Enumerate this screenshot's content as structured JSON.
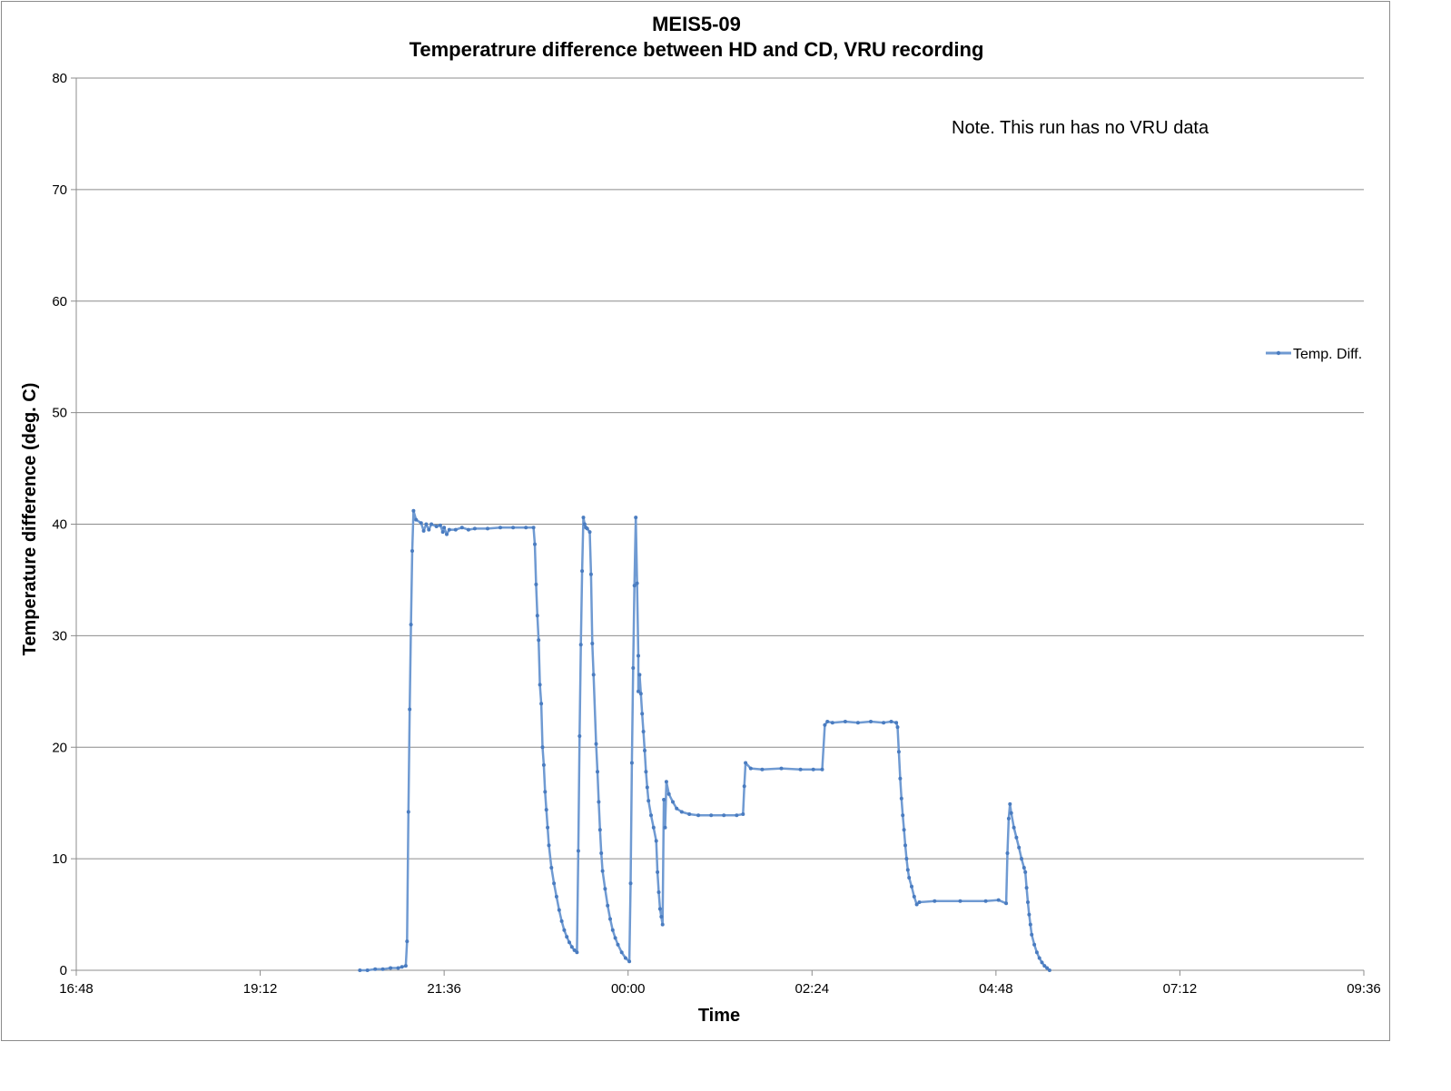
{
  "chart_data": {
    "type": "line",
    "title": "MEIS5-09",
    "subtitle": "Temperatrure difference between HD and CD, VRU recording",
    "xlabel": "Time",
    "ylabel": "Temperature difference (deg. C)",
    "xlim": [
      "16:48",
      "09:36"
    ],
    "ylim": [
      0,
      80
    ],
    "x_ticks": [
      "16:48",
      "19:12",
      "21:36",
      "00:00",
      "02:24",
      "04:48",
      "07:12",
      "09:36"
    ],
    "y_ticks": [
      "0",
      "10",
      "20",
      "30",
      "40",
      "50",
      "60",
      "70",
      "80"
    ],
    "grid": "horizontal",
    "legend_position": "right",
    "annotation": "Note. This run has no VRU data",
    "series_color": "#6f9ad2",
    "series": [
      {
        "name": "Temp. Diff.",
        "points": [
          [
            "20:30",
            0.0
          ],
          [
            "20:36",
            0.0
          ],
          [
            "20:42",
            0.1
          ],
          [
            "20:48",
            0.1
          ],
          [
            "20:54",
            0.2
          ],
          [
            "21:00",
            0.2
          ],
          [
            "21:03",
            0.3
          ],
          [
            "21:06",
            0.4
          ],
          [
            "21:07",
            2.6
          ],
          [
            "21:08",
            14.2
          ],
          [
            "21:09",
            23.4
          ],
          [
            "21:10",
            31.0
          ],
          [
            "21:11",
            37.6
          ],
          [
            "21:12",
            41.2
          ],
          [
            "21:14",
            40.4
          ],
          [
            "21:18",
            40.1
          ],
          [
            "21:20",
            39.4
          ],
          [
            "21:22",
            40.0
          ],
          [
            "21:24",
            39.5
          ],
          [
            "21:26",
            40.0
          ],
          [
            "21:30",
            39.8
          ],
          [
            "21:33",
            39.9
          ],
          [
            "21:35",
            39.3
          ],
          [
            "21:36",
            39.7
          ],
          [
            "21:38",
            39.1
          ],
          [
            "21:40",
            39.5
          ],
          [
            "21:45",
            39.5
          ],
          [
            "21:50",
            39.7
          ],
          [
            "21:55",
            39.5
          ],
          [
            "22:00",
            39.6
          ],
          [
            "22:10",
            39.6
          ],
          [
            "22:20",
            39.7
          ],
          [
            "22:30",
            39.7
          ],
          [
            "22:40",
            39.7
          ],
          [
            "22:46",
            39.7
          ],
          [
            "22:47",
            38.2
          ],
          [
            "22:48",
            34.6
          ],
          [
            "22:49",
            31.8
          ],
          [
            "22:50",
            29.6
          ],
          [
            "22:51",
            25.6
          ],
          [
            "22:52",
            23.9
          ],
          [
            "22:53",
            20.0
          ],
          [
            "22:54",
            18.4
          ],
          [
            "22:55",
            16.0
          ],
          [
            "22:56",
            14.4
          ],
          [
            "22:57",
            12.8
          ],
          [
            "22:58",
            11.2
          ],
          [
            "23:00",
            9.2
          ],
          [
            "23:02",
            7.8
          ],
          [
            "23:04",
            6.6
          ],
          [
            "23:06",
            5.4
          ],
          [
            "23:08",
            4.4
          ],
          [
            "23:10",
            3.6
          ],
          [
            "23:12",
            3.0
          ],
          [
            "23:14",
            2.5
          ],
          [
            "23:16",
            2.1
          ],
          [
            "23:18",
            1.8
          ],
          [
            "23:20",
            1.6
          ],
          [
            "23:21",
            10.7
          ],
          [
            "23:22",
            21.0
          ],
          [
            "23:23",
            29.2
          ],
          [
            "23:24",
            35.8
          ],
          [
            "23:25",
            40.6
          ],
          [
            "23:26",
            40.0
          ],
          [
            "23:27",
            39.7
          ],
          [
            "23:28",
            39.6
          ],
          [
            "23:30",
            39.3
          ],
          [
            "23:31",
            35.5
          ],
          [
            "23:32",
            29.3
          ],
          [
            "23:33",
            26.5
          ],
          [
            "23:35",
            20.3
          ],
          [
            "23:36",
            17.8
          ],
          [
            "23:37",
            15.1
          ],
          [
            "23:38",
            12.6
          ],
          [
            "23:39",
            10.5
          ],
          [
            "23:40",
            8.9
          ],
          [
            "23:42",
            7.3
          ],
          [
            "23:44",
            5.8
          ],
          [
            "23:46",
            4.6
          ],
          [
            "23:48",
            3.6
          ],
          [
            "23:50",
            2.9
          ],
          [
            "23:52",
            2.3
          ],
          [
            "23:55",
            1.6
          ],
          [
            "23:58",
            1.1
          ],
          [
            "24:01",
            0.8
          ],
          [
            "24:02",
            7.8
          ],
          [
            "24:03",
            18.6
          ],
          [
            "24:04",
            27.1
          ],
          [
            "24:05",
            34.5
          ],
          [
            "24:06",
            40.6
          ],
          [
            "24:07",
            34.7
          ],
          [
            "24:08",
            28.2
          ],
          [
            "24:08",
            25.0
          ],
          [
            "24:09",
            26.5
          ],
          [
            "24:10",
            24.8
          ],
          [
            "24:11",
            23.0
          ],
          [
            "24:12",
            21.4
          ],
          [
            "24:13",
            19.7
          ],
          [
            "24:14",
            17.8
          ],
          [
            "24:15",
            16.4
          ],
          [
            "24:16",
            15.2
          ],
          [
            "24:18",
            13.9
          ],
          [
            "24:20",
            12.8
          ],
          [
            "24:22",
            11.6
          ],
          [
            "24:23",
            8.8
          ],
          [
            "24:24",
            7.0
          ],
          [
            "24:25",
            5.5
          ],
          [
            "24:26",
            4.8
          ],
          [
            "24:27",
            4.1
          ],
          [
            "24:28",
            15.3
          ],
          [
            "24:29",
            12.8
          ],
          [
            "24:30",
            16.9
          ],
          [
            "24:32",
            15.8
          ],
          [
            "24:35",
            15.1
          ],
          [
            "24:38",
            14.5
          ],
          [
            "24:42",
            14.2
          ],
          [
            "24:48",
            14.0
          ],
          [
            "24:55",
            13.9
          ],
          [
            "25:05",
            13.9
          ],
          [
            "25:15",
            13.9
          ],
          [
            "25:25",
            13.9
          ],
          [
            "25:30",
            14.0
          ],
          [
            "25:31",
            16.5
          ],
          [
            "25:32",
            18.6
          ],
          [
            "25:36",
            18.1
          ],
          [
            "25:45",
            18.0
          ],
          [
            "26:00",
            18.1
          ],
          [
            "26:15",
            18.0
          ],
          [
            "26:25",
            18.0
          ],
          [
            "26:32",
            18.0
          ],
          [
            "26:34",
            22.0
          ],
          [
            "26:36",
            22.3
          ],
          [
            "26:40",
            22.2
          ],
          [
            "26:50",
            22.3
          ],
          [
            "27:00",
            22.2
          ],
          [
            "27:10",
            22.3
          ],
          [
            "27:20",
            22.2
          ],
          [
            "27:26",
            22.3
          ],
          [
            "27:30",
            22.2
          ],
          [
            "27:31",
            21.8
          ],
          [
            "27:32",
            19.6
          ],
          [
            "27:33",
            17.2
          ],
          [
            "27:34",
            15.4
          ],
          [
            "27:35",
            13.9
          ],
          [
            "27:36",
            12.6
          ],
          [
            "27:37",
            11.2
          ],
          [
            "27:38",
            10.0
          ],
          [
            "27:39",
            9.0
          ],
          [
            "27:40",
            8.3
          ],
          [
            "27:42",
            7.5
          ],
          [
            "27:44",
            6.6
          ],
          [
            "27:46",
            5.9
          ],
          [
            "27:48",
            6.1
          ],
          [
            "28:00",
            6.2
          ],
          [
            "28:20",
            6.2
          ],
          [
            "28:40",
            6.2
          ],
          [
            "28:50",
            6.3
          ],
          [
            "28:56",
            6.0
          ],
          [
            "28:57",
            10.5
          ],
          [
            "28:58",
            13.6
          ],
          [
            "28:59",
            14.9
          ],
          [
            "29:00",
            14.1
          ],
          [
            "29:02",
            12.8
          ],
          [
            "29:04",
            11.9
          ],
          [
            "29:06",
            11.0
          ],
          [
            "29:08",
            10.0
          ],
          [
            "29:10",
            9.2
          ],
          [
            "29:11",
            8.8
          ],
          [
            "29:12",
            7.4
          ],
          [
            "29:13",
            6.1
          ],
          [
            "29:14",
            5.0
          ],
          [
            "29:15",
            4.1
          ],
          [
            "29:16",
            3.2
          ],
          [
            "29:18",
            2.3
          ],
          [
            "29:20",
            1.6
          ],
          [
            "29:22",
            1.1
          ],
          [
            "29:24",
            0.7
          ],
          [
            "29:26",
            0.4
          ],
          [
            "29:28",
            0.2
          ],
          [
            "29:30",
            0.0
          ]
        ]
      }
    ]
  }
}
